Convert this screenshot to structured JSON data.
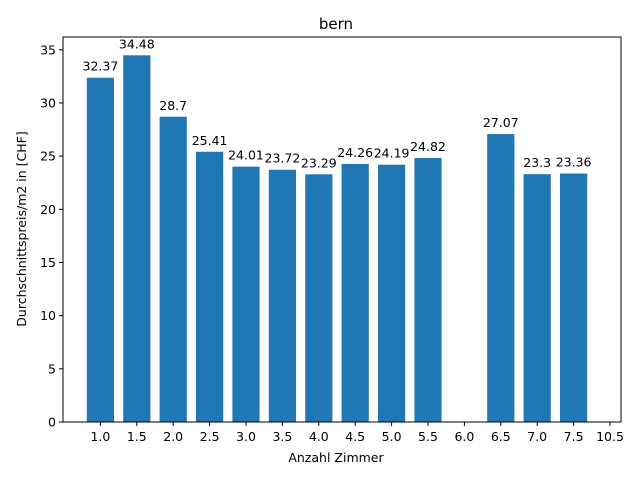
{
  "chart_data": {
    "type": "bar",
    "title": "bern",
    "xlabel": "Anzahl Zimmer",
    "ylabel": "Durchschnittspreis/m2 in [CHF]",
    "categories": [
      "1.0",
      "1.5",
      "2.0",
      "2.5",
      "3.0",
      "3.5",
      "4.0",
      "4.5",
      "5.0",
      "5.5",
      "6.0",
      "6.5",
      "7.0",
      "7.5",
      "10.5"
    ],
    "values": [
      32.37,
      34.48,
      28.7,
      25.41,
      24.01,
      23.72,
      23.29,
      24.26,
      24.19,
      24.82,
      null,
      27.07,
      23.3,
      23.36,
      null
    ],
    "data_labels": [
      "32.37",
      "34.48",
      "28.7",
      "25.41",
      "24.01",
      "23.72",
      "23.29",
      "24.26",
      "24.19",
      "24.82",
      "",
      "27.07",
      "23.3",
      "23.36",
      ""
    ],
    "yticks": [
      0,
      5,
      10,
      15,
      20,
      25,
      30,
      35
    ],
    "ylim": [
      0,
      36.2
    ],
    "bar_color": "#1f77b4",
    "grid": false,
    "legend": "none"
  }
}
